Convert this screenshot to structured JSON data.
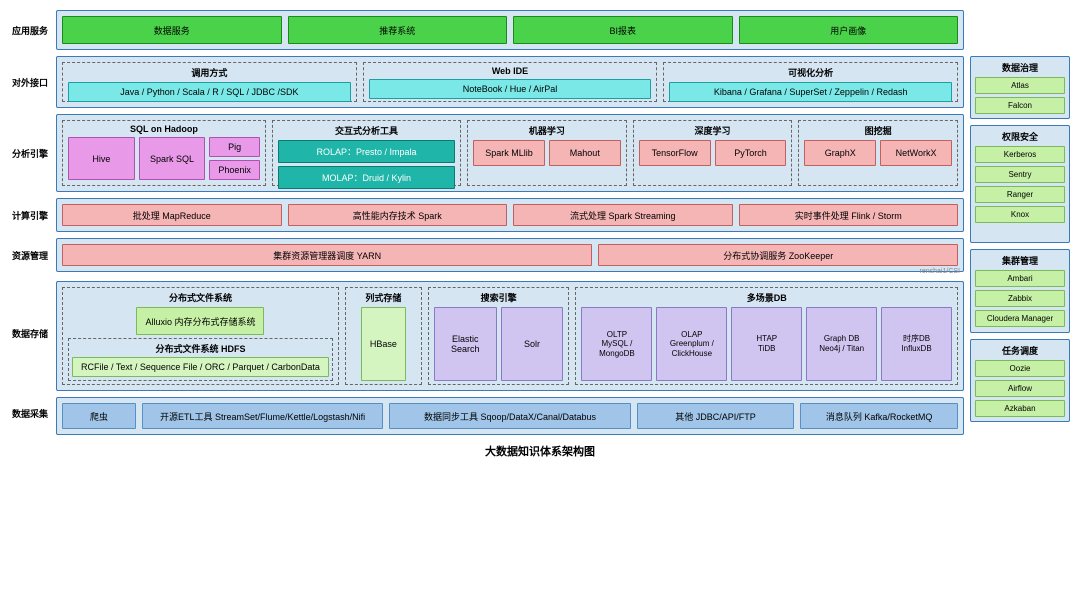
{
  "caption": "大数据知识体系架构图",
  "watermark": "renshai1/CSI",
  "rows": {
    "r1": {
      "label": "应用服务",
      "items": [
        "数据服务",
        "推荐系统",
        "BI报表",
        "用户画像"
      ]
    },
    "r2": {
      "label": "对外接口",
      "groups": [
        {
          "hdr": "调用方式",
          "items": [
            "Java / Python / Scala / R / SQL / JDBC /SDK"
          ]
        },
        {
          "hdr": "Web IDE",
          "items": [
            "NoteBook / Hue / AirPal"
          ]
        },
        {
          "hdr": "可视化分析",
          "items": [
            "Kibana / Grafana / SuperSet / Zeppelin / Redash"
          ]
        }
      ]
    },
    "r3": {
      "label": "分析引擎",
      "groups": [
        {
          "hdr": "SQL on Hadoop",
          "color": "magenta",
          "items": [
            "Hive",
            "Spark SQL"
          ],
          "side": [
            "Pig",
            "Phoenix"
          ]
        },
        {
          "hdr": "交互式分析工具",
          "color": "teal",
          "items": [
            "ROLAP：Presto / Impala",
            "MOLAP：Druid / Kylin"
          ]
        },
        {
          "hdr": "机器学习",
          "color": "coral",
          "items": [
            "Spark MLlib",
            "Mahout"
          ]
        },
        {
          "hdr": "深度学习",
          "color": "coral",
          "items": [
            "TensorFlow",
            "PyTorch"
          ]
        },
        {
          "hdr": "图挖掘",
          "color": "coral",
          "items": [
            "GraphX",
            "NetWorkX"
          ]
        }
      ]
    },
    "r4": {
      "label": "计算引擎",
      "items": [
        "批处理 MapReduce",
        "高性能内存技术 Spark",
        "流式处理 Spark Streaming",
        "实时事件处理 Flink / Storm"
      ]
    },
    "r5": {
      "label": "资源管理",
      "items": [
        "集群资源管理器调度 YARN",
        "分布式协调服务 ZooKeeper"
      ]
    },
    "r6": {
      "label": "数据存储",
      "dfs": {
        "hdr": "分布式文件系统",
        "alluxio": "Alluxio 内存分布式存储系统",
        "hdfs": {
          "hdr": "分布式文件系统 HDFS",
          "fmt": "RCFile / Text / Sequence File / ORC / Parquet / CarbonData"
        }
      },
      "col": {
        "hdr": "列式存储",
        "item": "HBase"
      },
      "search": {
        "hdr": "搜索引擎",
        "items": [
          "Elastic Search",
          "Solr"
        ]
      },
      "multi": {
        "hdr": "多场景DB",
        "items": [
          {
            "t": "OLTP",
            "s": "MySQL / MongoDB"
          },
          {
            "t": "OLAP",
            "s": "Greenplum / ClickHouse"
          },
          {
            "t": "HTAP",
            "s": "TiDB"
          },
          {
            "t": "Graph DB",
            "s": "Neo4j / Titan"
          },
          {
            "t": "时序DB",
            "s": "InfluxDB"
          }
        ]
      }
    },
    "r7": {
      "label": "数据采集",
      "items": [
        "爬虫",
        "开源ETL工具 StreamSet/Flume/Kettle/Logstash/Nifi",
        "数据同步工具 Sqoop/DataX/Canal/Databus",
        "其他 JDBC/API/FTP",
        "消息队列 Kafka/RocketMQ"
      ]
    }
  },
  "side": {
    "gov": {
      "hdr": "数据治理",
      "items": [
        "Atlas",
        "Falcon"
      ]
    },
    "sec": {
      "hdr": "权限安全",
      "items": [
        "Kerberos",
        "Sentry",
        "Ranger",
        "Knox"
      ]
    },
    "clu": {
      "hdr": "集群管理",
      "items": [
        "Ambari",
        "Zabbix",
        "Cloudera Manager"
      ]
    },
    "sch": {
      "hdr": "任务调度",
      "items": [
        "Oozie",
        "Airflow",
        "Azkaban"
      ]
    }
  },
  "heights": {
    "r1": 40,
    "r2": 52,
    "r3": 78,
    "r4": 34,
    "r5": 34,
    "r6": 110,
    "r7": 38
  }
}
